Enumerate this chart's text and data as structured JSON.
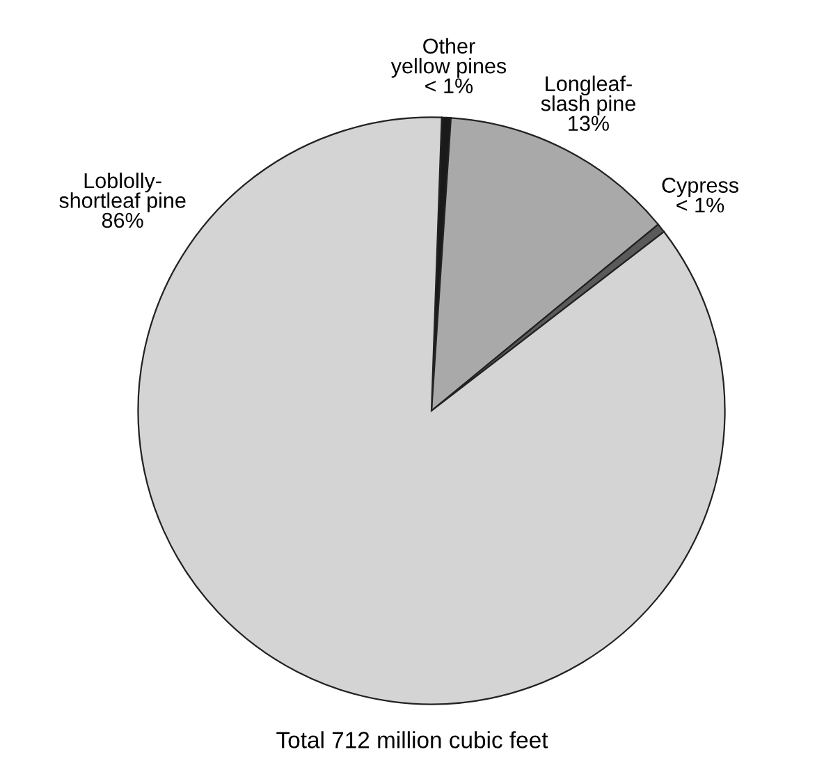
{
  "chart_data": {
    "type": "pie",
    "categories": [
      "Other\nyellow pines",
      "Longleaf-\nslash pine",
      "Cypress",
      "Loblolly-\nshortleaf pine"
    ],
    "values": [
      0.5,
      13,
      0.5,
      86
    ],
    "value_labels": [
      "< 1%",
      "13%",
      "< 1%",
      "86%"
    ],
    "colors": [
      "#1a1a1a",
      "#a9a9a9",
      "#5a5a5a",
      "#d4d4d4"
    ],
    "annotations": [
      "Total 712 million cubic feet"
    ],
    "legend": false
  }
}
